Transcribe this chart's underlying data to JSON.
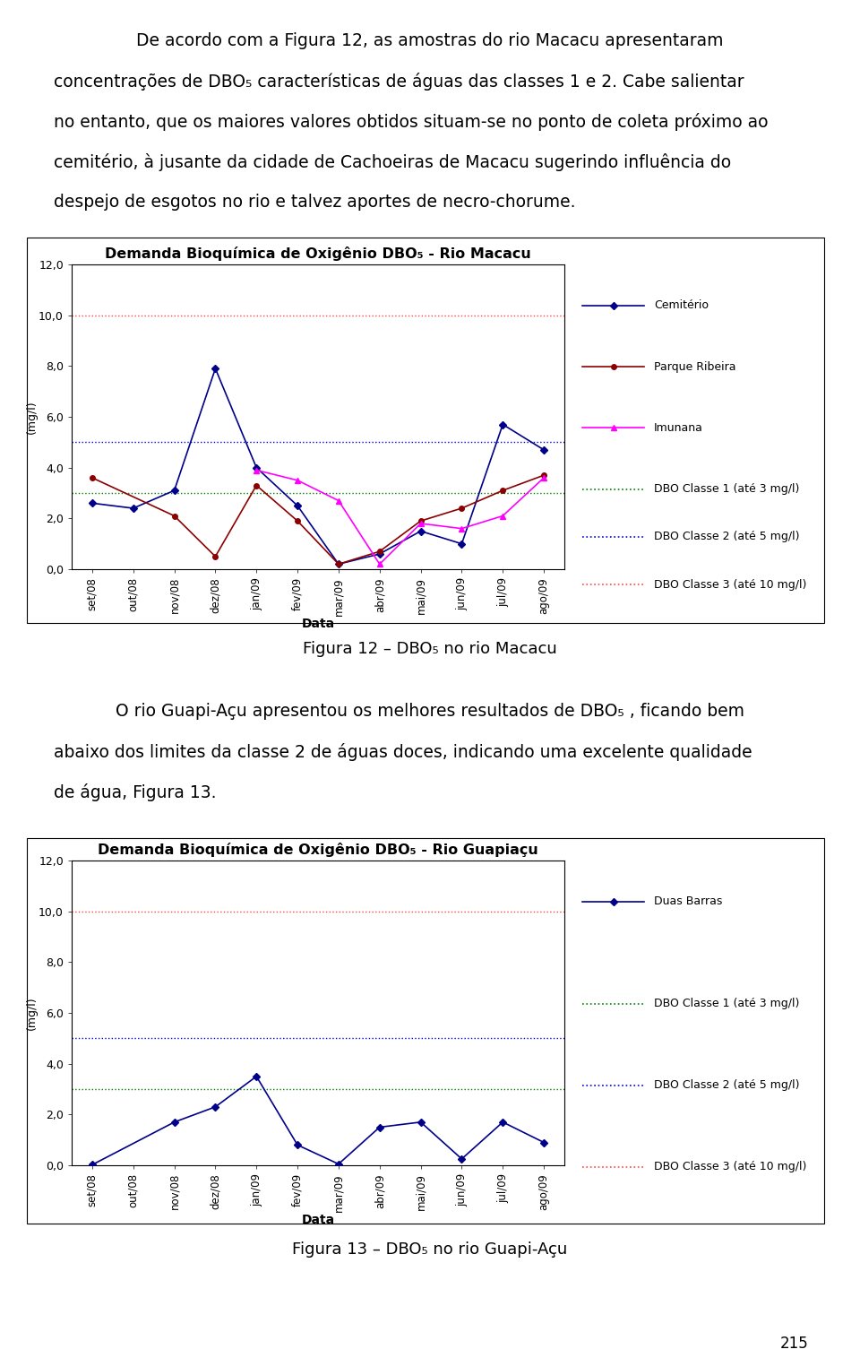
{
  "chart1": {
    "title": "Demanda Bioquímica de Oxigênio DBO₅ - Rio Macacu",
    "ylabel": "(mg/l)",
    "xlabel": "Data",
    "ylim": [
      0,
      12
    ],
    "yticks": [
      0.0,
      2.0,
      4.0,
      6.0,
      8.0,
      10.0,
      12.0
    ],
    "categories": [
      "set/08",
      "out/08",
      "nov/08",
      "dez/08",
      "jan/09",
      "fev/09",
      "mar/09",
      "abr/09",
      "mai/09",
      "jun/09",
      "jul/09",
      "ago/09"
    ],
    "cemiterio": [
      2.6,
      2.4,
      3.1,
      7.9,
      4.0,
      2.5,
      0.2,
      0.6,
      1.5,
      1.0,
      5.7,
      4.7
    ],
    "parque_ribeira": [
      3.6,
      null,
      2.1,
      0.5,
      3.3,
      1.9,
      0.2,
      0.7,
      1.9,
      2.4,
      3.1,
      3.7
    ],
    "imunana": [
      null,
      null,
      null,
      null,
      3.9,
      3.5,
      2.7,
      0.2,
      1.8,
      1.6,
      2.1,
      3.6
    ],
    "dbo1": 3.0,
    "dbo2": 5.0,
    "dbo3": 10.0,
    "cemiterio_color": "#00008B",
    "parque_color": "#8B0000",
    "imunana_color": "#FF00FF",
    "dbo1_color": "#008000",
    "dbo2_color": "#0000CD",
    "dbo3_color": "#FF4444"
  },
  "chart2": {
    "title": "Demanda Bioquímica de Oxigênio DBO₅ - Rio Guapiaçu",
    "ylabel": "(mg/l)",
    "xlabel": "Data",
    "ylim": [
      0,
      12
    ],
    "yticks": [
      0.0,
      2.0,
      4.0,
      6.0,
      8.0,
      10.0,
      12.0
    ],
    "categories": [
      "set/08",
      "out/08",
      "nov/08",
      "dez/08",
      "jan/09",
      "fev/09",
      "mar/09",
      "abr/09",
      "mai/09",
      "jun/09",
      "jul/09",
      "ago/09"
    ],
    "duas_barras": [
      0.02,
      null,
      1.7,
      2.3,
      3.5,
      0.8,
      0.05,
      1.5,
      1.7,
      0.25,
      1.7,
      0.9
    ],
    "dbo1": 3.0,
    "dbo2": 5.0,
    "dbo3": 10.0,
    "duas_barras_color": "#00008B",
    "dbo1_color": "#008000",
    "dbo2_color": "#0000CD",
    "dbo3_color": "#FF4444"
  },
  "fig12_caption": "Figura 12 – DBO₅ no rio Macacu",
  "fig13_caption": "Figura 13 – DBO₅ no rio Guapi-Açu",
  "page_number": "215",
  "para1_lines": [
    "De acordo com a Figura 12, as amostras do rio Macacu apresentaram",
    "concentrações de DBO₅ características de águas das classes 1 e 2. Cabe salientar",
    "no entanto, que os maiores valores obtidos situam-se no ponto de coleta próximo ao",
    "cemitério, à jusante da cidade de Cachoeiras de Macacu sugerindo influência do",
    "despejo de esgotos no rio e talvez aportes de necro-chorume."
  ],
  "para2_lines": [
    "O rio Guapi-Açu apresentou os melhores resultados de DBO₅ , ficando bem",
    "abaixo dos limites da classe 2 de águas doces, indicando uma excelente qualidade",
    "de água, Figura 13."
  ],
  "text_fontsize": 14,
  "title_fontsize": 12,
  "axis_fontsize": 9,
  "tick_fontsize": 9,
  "legend_fontsize": 9,
  "caption_fontsize": 13,
  "page_fontsize": 12
}
